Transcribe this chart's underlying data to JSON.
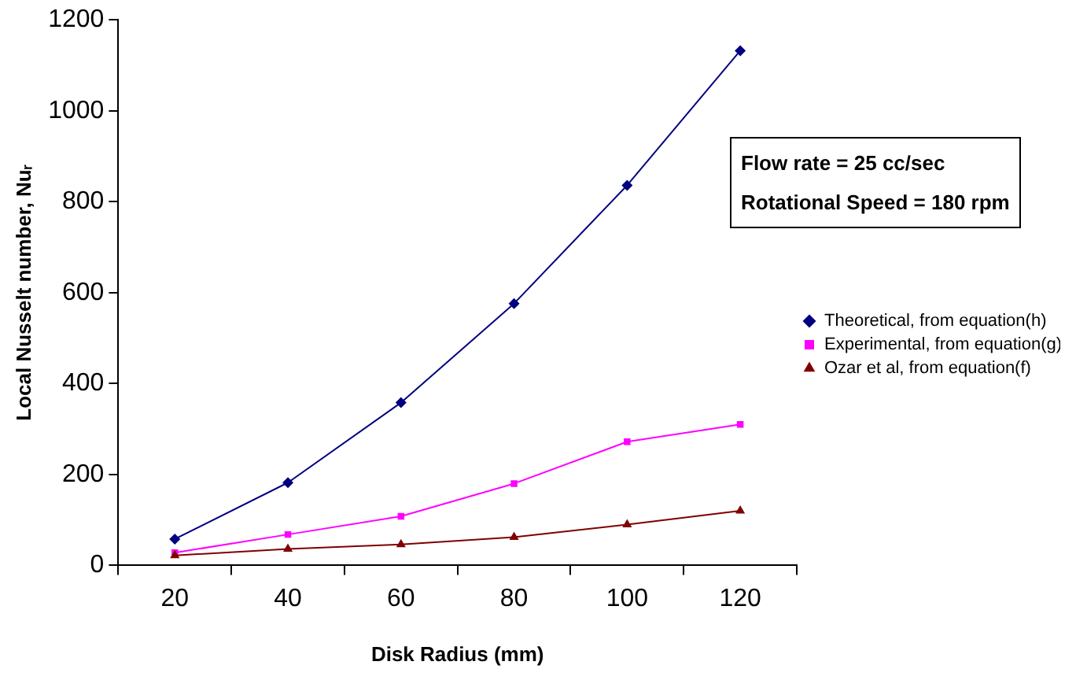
{
  "chart_data": {
    "type": "line",
    "xlabel": "Disk Radius (mm)",
    "ylabel": "Local Nusselt number, Nuᵣ",
    "categories": [
      "20",
      "40",
      "60",
      "80",
      "100",
      "120"
    ],
    "series": [
      {
        "name": "Theoretical, from equation(h)",
        "color": "#000080",
        "values": [
          58,
          182,
          358,
          576,
          836,
          1132
        ],
        "marker": "diamond"
      },
      {
        "name": "Experimental, from equation(g)",
        "color": "#ff00ff",
        "values": [
          28,
          68,
          108,
          180,
          272,
          310
        ],
        "marker": "square"
      },
      {
        "name": "Ozar et al, from equation(f)",
        "color": "#800000",
        "values": [
          22,
          36,
          46,
          62,
          90,
          120
        ],
        "marker": "triangle"
      }
    ],
    "ylim": [
      0,
      1200
    ],
    "yticks": [
      0,
      200,
      400,
      600,
      800,
      1000,
      1200
    ],
    "grid": false,
    "legend": "right",
    "annotations": [
      "Flow rate = 25 cc/sec",
      "Rotational Speed = 180 rpm"
    ]
  }
}
